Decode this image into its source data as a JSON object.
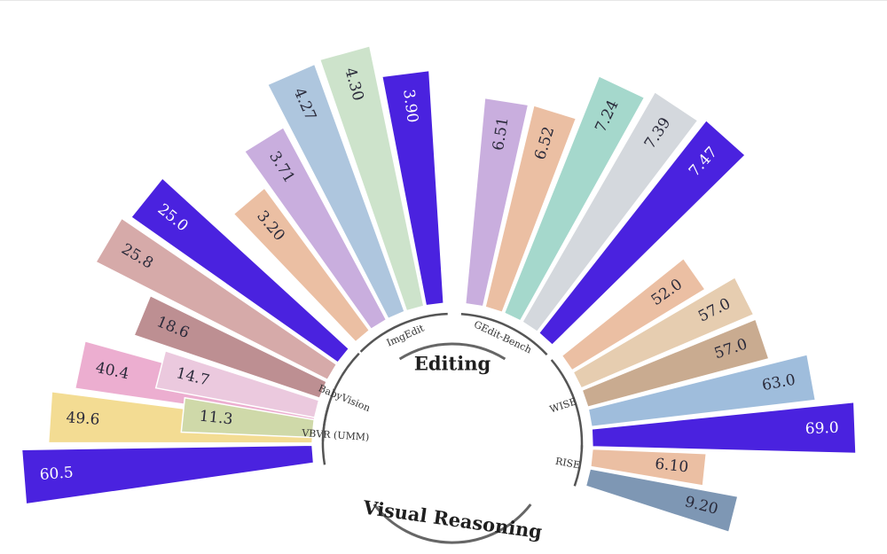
{
  "chart_data": {
    "type": "bar",
    "layout": "radial",
    "groups": [
      {
        "name": "Editing",
        "benchmarks": [
          "ImgEdit",
          "GEdit-Bench",
          "WISE"
        ]
      },
      {
        "name": "Visual Reasoning",
        "benchmarks": [
          "RISE",
          "VBVR (UMM)",
          "BabyVision"
        ]
      }
    ],
    "benchmarks": [
      {
        "name": "ImgEdit",
        "values": [
          3.2,
          3.71,
          4.27,
          4.3,
          3.9
        ],
        "labels": [
          "3.20",
          "3.71",
          "4.27",
          "4.30",
          "3.90"
        ],
        "colors": [
          "#ebbfa3",
          "#c9aede",
          "#aec6de",
          "#cde3cb",
          "#4a22df"
        ]
      },
      {
        "name": "GEdit-Bench",
        "values": [
          6.51,
          6.52,
          7.24,
          7.39,
          7.47
        ],
        "labels": [
          "6.51",
          "6.52",
          "7.24",
          "7.39",
          "7.47"
        ],
        "colors": [
          "#c9aede",
          "#ebbfa3",
          "#a5d8cc",
          "#d4d8dd",
          "#4a22df"
        ]
      },
      {
        "name": "WISE",
        "values": [
          52.0,
          57.0,
          57.0,
          63.0,
          69.0
        ],
        "labels": [
          "52.0",
          "57.0",
          "57.0",
          "63.0",
          "69.0"
        ],
        "colors": [
          "#ebbfa3",
          "#e6cdb0",
          "#c9ab90",
          "#9fbddc",
          "#4a22df"
        ]
      },
      {
        "name": "RISE",
        "values": [
          6.1,
          9.2
        ],
        "labels": [
          "6.10",
          "9.20"
        ],
        "colors": [
          "#ebbfa3",
          "#7e97b4"
        ]
      },
      {
        "name": "VBVR (UMM)",
        "values": [
          60.5,
          49.6,
          40.4
        ],
        "labels": [
          "60.5",
          "49.6",
          "40.4"
        ],
        "colors": [
          "#4a22df",
          "#f3dc93",
          "#ecaed0"
        ]
      },
      {
        "name": "BabyVision",
        "values": [
          11.3,
          14.7,
          18.6,
          25.8,
          25.0
        ],
        "labels": [
          "11.3",
          "14.7",
          "18.6",
          "25.8",
          "25.0"
        ],
        "colors": [
          "#cfd9a9",
          "#ebc9de",
          "#bd8f92",
          "#d6aaa9",
          "#4a22df"
        ]
      }
    ]
  }
}
